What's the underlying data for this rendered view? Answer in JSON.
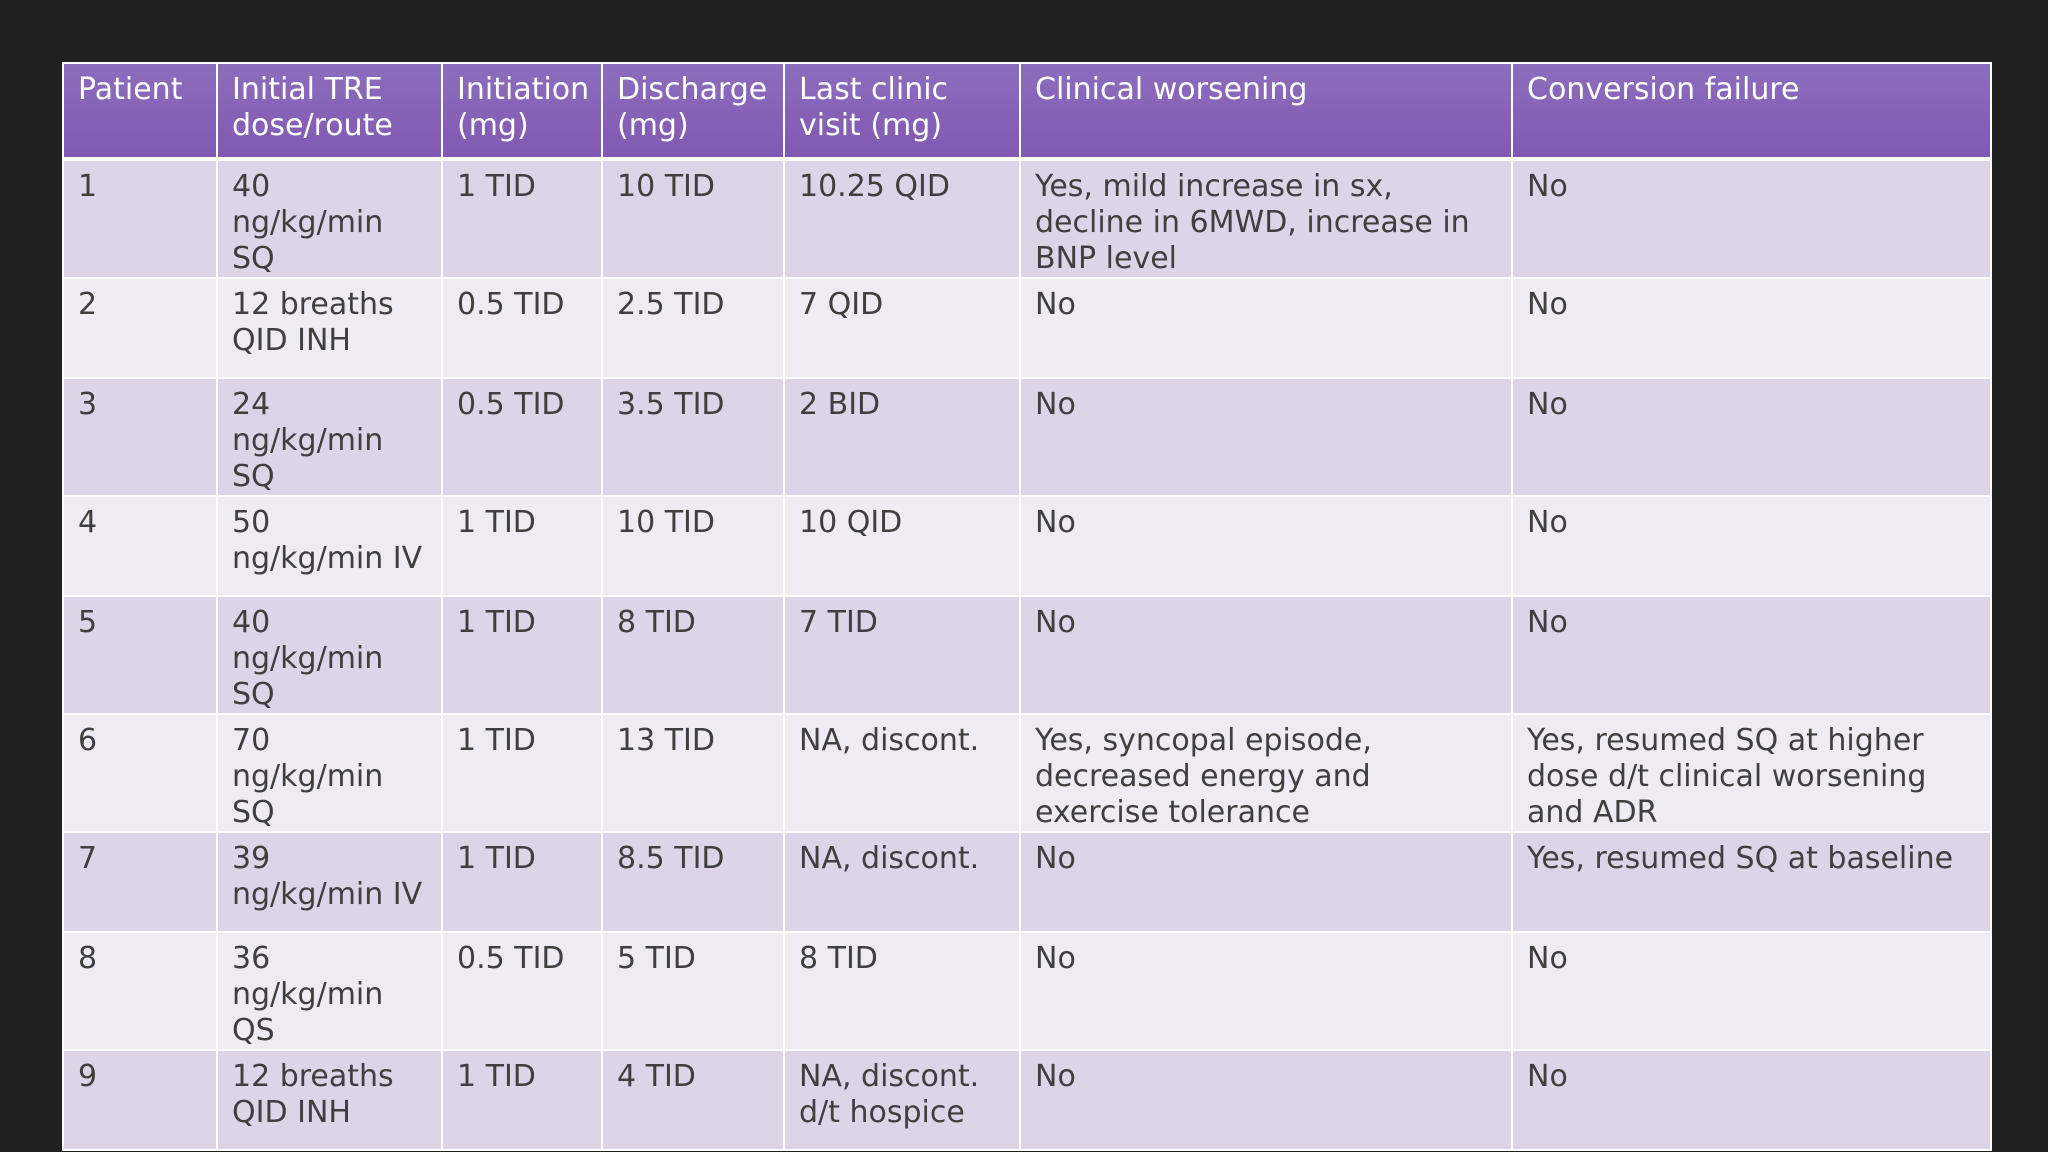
{
  "table": {
    "headers": [
      "Patient",
      "Initial TRE dose/route",
      "Initiation (mg)",
      "Discharge (mg)",
      "Last clinic visit (mg)",
      "Clinical worsening",
      "Conversion failure"
    ],
    "rows": [
      [
        "1",
        "40 ng/kg/min SQ",
        "1 TID",
        "10 TID",
        "10.25 QID",
        "Yes, mild increase in sx, decline in 6MWD, increase in BNP level",
        "No"
      ],
      [
        "2",
        "12 breaths QID INH",
        "0.5 TID",
        "2.5 TID",
        "7 QID",
        "No",
        "No"
      ],
      [
        "3",
        "24 ng/kg/min SQ",
        "0.5 TID",
        "3.5 TID",
        "2 BID",
        "No",
        "No"
      ],
      [
        "4",
        "50 ng/kg/min IV",
        "1 TID",
        "10 TID",
        "10 QID",
        "No",
        "No"
      ],
      [
        "5",
        "40 ng/kg/min SQ",
        "1 TID",
        "8 TID",
        "7 TID",
        "No",
        "No"
      ],
      [
        "6",
        "70 ng/kg/min SQ",
        "1 TID",
        "13 TID",
        "NA, discont.",
        "Yes, syncopal episode, decreased energy and exercise tolerance",
        "Yes, resumed SQ at higher dose d/t clinical worsening and ADR"
      ],
      [
        "7",
        "39 ng/kg/min IV",
        "1 TID",
        "8.5 TID",
        "NA, discont.",
        "No",
        "Yes, resumed SQ at baseline"
      ],
      [
        "8",
        "36 ng/kg/min QS",
        "0.5 TID",
        "5 TID",
        "8 TID",
        "No",
        "No"
      ],
      [
        "9",
        "12 breaths QID INH",
        "1 TID",
        "4 TID",
        "NA, discont. d/t hospice",
        "No",
        "No"
      ]
    ]
  },
  "colors": {
    "background": "#202020",
    "header": "#8561b5",
    "row_band_dark": "#dcd5e8",
    "row_band_light": "#eeebf3",
    "text": "#3f3f3f",
    "header_text": "#ffffff"
  }
}
